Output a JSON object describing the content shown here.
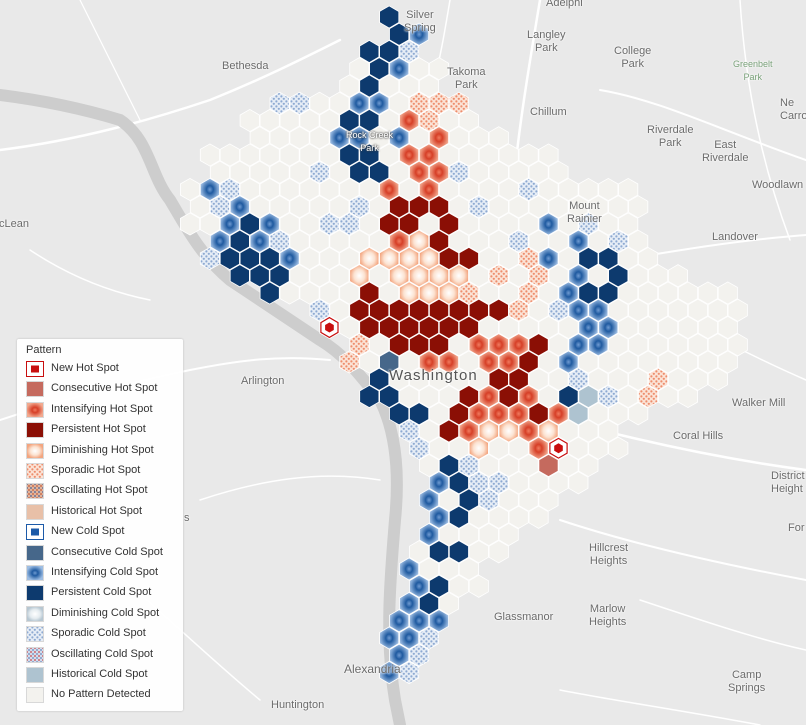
{
  "map": {
    "place_labels": [
      {
        "key": "silver-spring",
        "text": "Silver\nSpring"
      },
      {
        "key": "adelphi",
        "text": "Adelphi"
      },
      {
        "key": "langley-park",
        "text": "Langley\nPark"
      },
      {
        "key": "college-park",
        "text": "College\nPark"
      },
      {
        "key": "greenbelt-park",
        "text": "Greenbelt\nPark"
      },
      {
        "key": "bethesda",
        "text": "Bethesda"
      },
      {
        "key": "takoma-park",
        "text": "Takoma\nPark"
      },
      {
        "key": "chillum",
        "text": "Chillum"
      },
      {
        "key": "riverdale-park",
        "text": "Riverdale\nPark"
      },
      {
        "key": "east-riverdale",
        "text": "East\nRiverdale"
      },
      {
        "key": "new-carrollton",
        "text": "Ne\nCarro"
      },
      {
        "key": "rock-creek-park",
        "text": "Rock Creek\nPark"
      },
      {
        "key": "mount-rainier",
        "text": "Mount\nRainier"
      },
      {
        "key": "woodlawn",
        "text": "Woodlawn"
      },
      {
        "key": "mclean",
        "text": "cLean"
      },
      {
        "key": "landover",
        "text": "Landover"
      },
      {
        "key": "arlington",
        "text": "Arlington"
      },
      {
        "key": "washington",
        "text": "Washington"
      },
      {
        "key": "walker-mill",
        "text": "Walker Mill"
      },
      {
        "key": "coral-hills",
        "text": "Coral Hills"
      },
      {
        "key": "district-heights",
        "text": "District\nHeight"
      },
      {
        "key": "fort",
        "text": "For"
      },
      {
        "key": "hillcrest-heights",
        "text": "Hillcrest\nHeights"
      },
      {
        "key": "marlow-heights",
        "text": "Marlow\nHeights"
      },
      {
        "key": "glassmanor",
        "text": "Glassmanor"
      },
      {
        "key": "alexandria",
        "text": "Alexandria"
      },
      {
        "key": "camp-springs",
        "text": "Camp\nSprings"
      },
      {
        "key": "huntington",
        "text": "Huntington"
      },
      {
        "key": "fairlington-fragment",
        "text": "s"
      }
    ]
  },
  "legend": {
    "title": "Pattern",
    "items": [
      {
        "label": "New Hot Spot",
        "pattern": "new-hot"
      },
      {
        "label": "Consecutive Hot Spot",
        "pattern": "consecutive-hot"
      },
      {
        "label": "Intensifying Hot Spot",
        "pattern": "intensifying-hot"
      },
      {
        "label": "Persistent Hot Spot",
        "pattern": "persistent-hot"
      },
      {
        "label": "Diminishing Hot Spot",
        "pattern": "diminishing-hot"
      },
      {
        "label": "Sporadic Hot Spot",
        "pattern": "sporadic-hot"
      },
      {
        "label": "Oscillating Hot Spot",
        "pattern": "oscillating-hot"
      },
      {
        "label": "Historical Hot Spot",
        "pattern": "historical-hot"
      },
      {
        "label": "New Cold Spot",
        "pattern": "new-cold"
      },
      {
        "label": "Consecutive Cold Spot",
        "pattern": "consecutive-cold"
      },
      {
        "label": "Intensifying Cold Spot",
        "pattern": "intensifying-cold"
      },
      {
        "label": "Persistent Cold Spot",
        "pattern": "persistent-cold"
      },
      {
        "label": "Diminishing Cold Spot",
        "pattern": "diminishing-cold"
      },
      {
        "label": "Sporadic Cold Spot",
        "pattern": "sporadic-cold"
      },
      {
        "label": "Oscillating Cold Spot",
        "pattern": "oscillating-cold"
      },
      {
        "label": "Historical Cold Spot",
        "pattern": "historical-cold"
      },
      {
        "label": "No Pattern Detected",
        "pattern": "no-pattern"
      }
    ]
  },
  "colors": {
    "persistent_hot": "#8b0f05",
    "intensifying_hot": "#d9442a",
    "consecutive_hot": "#c56a5e",
    "new_hot": "#c80e0e",
    "diminishing_hot": "#f5b38e",
    "sporadic_hot": "#f3a88c",
    "historical_hot": "#e8c0a8",
    "persistent_cold": "#0d3a6e",
    "intensifying_cold": "#2b68ad",
    "consecutive_cold": "#46678a",
    "new_cold": "#1c5aa8",
    "diminishing_cold": "#cdd9e0",
    "sporadic_cold": "#a8bfdc",
    "historical_cold": "#aec3d0",
    "no_pattern": "#f3f2ee",
    "river": "#cfcfcf",
    "background": "#e9e9e9"
  }
}
